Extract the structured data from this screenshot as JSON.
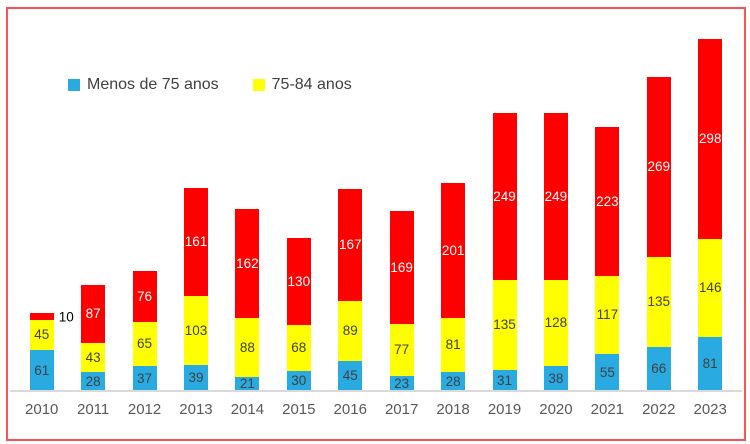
{
  "chart_data": {
    "type": "bar",
    "stacked": true,
    "title": "",
    "xlabel": "",
    "ylabel": "",
    "grid": false,
    "y_axis_visible": false,
    "legend_position": "top-left",
    "categories": [
      "2010",
      "2011",
      "2012",
      "2013",
      "2014",
      "2015",
      "2016",
      "2017",
      "2018",
      "2019",
      "2020",
      "2021",
      "2022",
      "2023"
    ],
    "series": [
      {
        "name": "Menos de 75 anos",
        "color": "#29ABE2",
        "label_color": "#404040",
        "values": [
          61,
          28,
          37,
          39,
          21,
          30,
          45,
          23,
          28,
          31,
          38,
          55,
          66,
          81
        ]
      },
      {
        "name": "75-84 anos",
        "color": "#FFFF00",
        "label_color": "#404040",
        "values": [
          45,
          43,
          65,
          103,
          88,
          68,
          89,
          77,
          81,
          135,
          128,
          117,
          135,
          146
        ]
      },
      {
        "name": "",
        "color": "#FF0000",
        "label_color": "#FFFFFF",
        "values": [
          10,
          87,
          76,
          161,
          162,
          130,
          167,
          169,
          201,
          249,
          249,
          223,
          269,
          298
        ]
      }
    ],
    "legend": [
      {
        "label": "Menos de 75 anos",
        "color": "#29ABE2"
      },
      {
        "label": "75-84 anos",
        "color": "#FFFF00"
      }
    ],
    "frame_color": "#F85454",
    "axis_line_color": "#D9D9D9",
    "tick_label_color": "#595959",
    "outside_label_color": "#000000"
  }
}
